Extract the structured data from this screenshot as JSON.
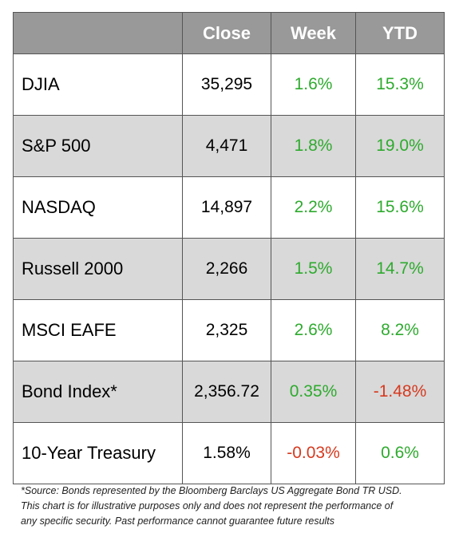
{
  "chart_data": {
    "type": "table",
    "columns": [
      "",
      "Close",
      "Week",
      "YTD"
    ],
    "rows": [
      {
        "name": "DJIA",
        "close": "35,295",
        "week": "1.6%",
        "ytd": "15.3%"
      },
      {
        "name": "S&P 500",
        "close": "4,471",
        "week": "1.8%",
        "ytd": "19.0%"
      },
      {
        "name": "NASDAQ",
        "close": "14,897",
        "week": "2.2%",
        "ytd": "15.6%"
      },
      {
        "name": "Russell 2000",
        "close": "2,266",
        "week": "1.5%",
        "ytd": "14.7%"
      },
      {
        "name": "MSCI EAFE",
        "close": "2,325",
        "week": "2.6%",
        "ytd": "8.2%"
      },
      {
        "name": "Bond Index*",
        "close": "2,356.72",
        "week": "0.35%",
        "ytd": "-1.48%"
      },
      {
        "name": "10-Year Treasury",
        "close": "1.58%",
        "week": "-0.03%",
        "ytd": "0.6%"
      }
    ],
    "footnote": [
      "*Source: Bonds represented by the Bloomberg Barclays US Aggregate Bond TR USD.",
      "This chart is for illustrative purposes only and does not represent the performance of",
      "any specific security. Past performance cannot guarantee future results"
    ]
  },
  "colors": {
    "header_bg": "#999999",
    "row_shade": "#d9d9d9",
    "positive": "#2eaa2e",
    "negative": "#d63a1f"
  }
}
